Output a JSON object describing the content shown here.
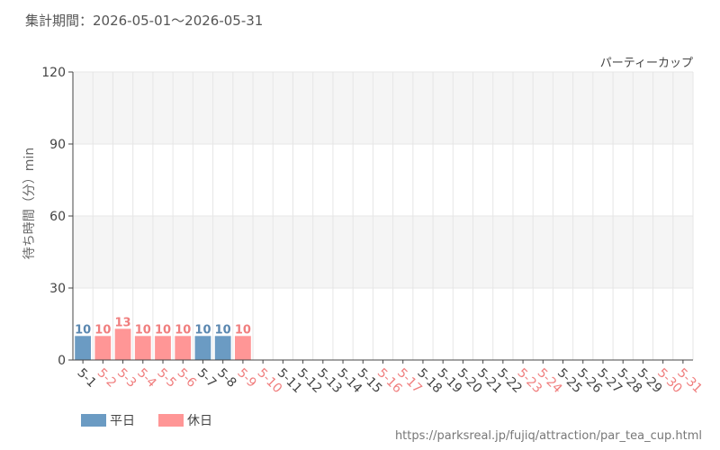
{
  "period_text": "集計期間：2026-05-01～2026-05-31",
  "source_url": "https://parksreal.jp/fujiq/attraction/par_tea_cup.html",
  "colors": {
    "weekday": "#6b9bc3",
    "holiday": "#ff9696",
    "weekday_text": "#5a87b0",
    "holiday_text": "#f07e7e",
    "band": "#f5f5f5",
    "grid": "#e6e6e6",
    "axis": "#444444",
    "text": "#555555"
  },
  "chart_data": {
    "type": "bar",
    "title": "パーティーカップ",
    "ylabel": "待ち時間（分）min",
    "xlabel": "",
    "ylim": [
      0,
      120
    ],
    "yticks": [
      0,
      30,
      60,
      90,
      120
    ],
    "grid": true,
    "legend_position": "bottom-left",
    "legend": [
      {
        "label": "平日",
        "key": "weekday"
      },
      {
        "label": "休日",
        "key": "holiday"
      }
    ],
    "categories": [
      "5-1",
      "5-2",
      "5-3",
      "5-4",
      "5-5",
      "5-6",
      "5-7",
      "5-8",
      "5-9",
      "5-10",
      "5-11",
      "5-12",
      "5-13",
      "5-14",
      "5-15",
      "5-16",
      "5-17",
      "5-18",
      "5-19",
      "5-20",
      "5-21",
      "5-22",
      "5-23",
      "5-24",
      "5-25",
      "5-26",
      "5-27",
      "5-28",
      "5-29",
      "5-30",
      "5-31"
    ],
    "day_types": [
      "weekday",
      "holiday",
      "holiday",
      "holiday",
      "holiday",
      "holiday",
      "weekday",
      "weekday",
      "holiday",
      "holiday",
      "weekday",
      "weekday",
      "weekday",
      "weekday",
      "weekday",
      "holiday",
      "holiday",
      "weekday",
      "weekday",
      "weekday",
      "weekday",
      "weekday",
      "holiday",
      "holiday",
      "weekday",
      "weekday",
      "weekday",
      "weekday",
      "weekday",
      "holiday",
      "holiday"
    ],
    "values": [
      10,
      10,
      13,
      10,
      10,
      10,
      10,
      10,
      10,
      null,
      null,
      null,
      null,
      null,
      null,
      null,
      null,
      null,
      null,
      null,
      null,
      null,
      null,
      null,
      null,
      null,
      null,
      null,
      null,
      null,
      null
    ]
  }
}
